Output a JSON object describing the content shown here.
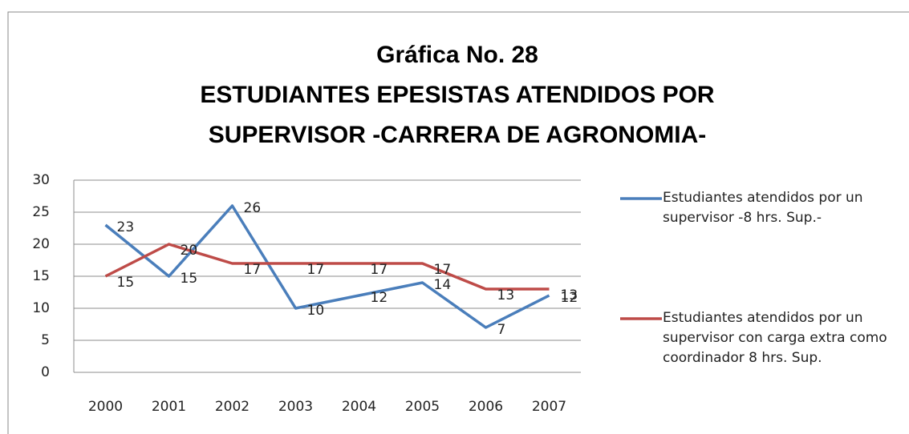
{
  "chart_data": {
    "type": "line",
    "title": [
      "Gráfica No. 28",
      "ESTUDIANTES  EPESISTAS ATENDIDOS POR",
      "SUPERVISOR -CARRERA DE AGRONOMIA-"
    ],
    "categories": [
      "2000",
      "2001",
      "2002",
      "2003",
      "2004",
      "2005",
      "2006",
      "2007"
    ],
    "series": [
      {
        "name": "Estudiantes atendidos  por un supervisor -8 hrs. Sup.-",
        "color": "#4a7ebb",
        "values": [
          23,
          15,
          26,
          10,
          12,
          14,
          7,
          12
        ]
      },
      {
        "name": "Estudiantes atendidos por un supervisor con carga extra como coordinador 8 hrs. Sup.",
        "color": "#be4b48",
        "values": [
          15,
          20,
          17,
          17,
          17,
          17,
          13,
          13
        ]
      }
    ],
    "ylim": [
      0,
      30
    ],
    "yticks": [
      0,
      5,
      10,
      15,
      20,
      25,
      30
    ],
    "grid": true,
    "legend": "right"
  }
}
